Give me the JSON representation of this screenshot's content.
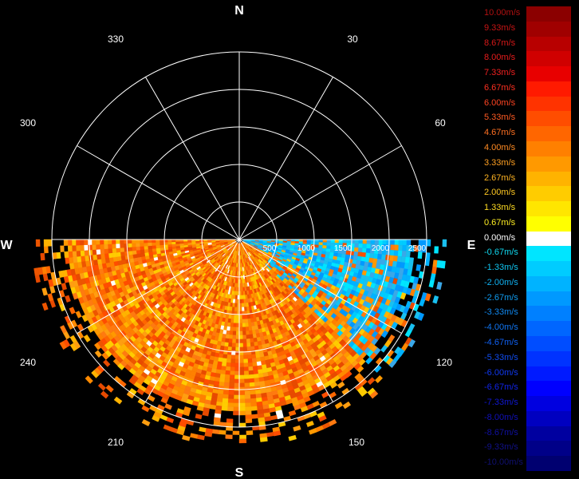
{
  "cardinals": {
    "north": "N",
    "south": "S",
    "east": "E",
    "west": "W"
  },
  "azimuth_labels": {
    "a330": "330",
    "a30": "30",
    "a300": "300",
    "a60": "60",
    "a240": "240",
    "a120": "120",
    "a210": "210",
    "a150": "150"
  },
  "range_labels": [
    "500",
    "1000",
    "1500",
    "2000",
    "2500"
  ],
  "legend": [
    {
      "label": "10.00m/s",
      "color": "#8b0000",
      "text": "#b01010"
    },
    {
      "label": "9.33m/s",
      "color": "#a00000",
      "text": "#c81414"
    },
    {
      "label": "8.67m/s",
      "color": "#b80000",
      "text": "#d81818"
    },
    {
      "label": "8.00m/s",
      "color": "#d00000",
      "text": "#e81c1c"
    },
    {
      "label": "7.33m/s",
      "color": "#e80000",
      "text": "#f02020"
    },
    {
      "label": "6.67m/s",
      "color": "#ff1a00",
      "text": "#ff3020"
    },
    {
      "label": "6.00m/s",
      "color": "#ff3300",
      "text": "#ff4422"
    },
    {
      "label": "5.33m/s",
      "color": "#ff4d00",
      "text": "#ff5a22"
    },
    {
      "label": "4.67m/s",
      "color": "#ff6600",
      "text": "#ff7022"
    },
    {
      "label": "4.00m/s",
      "color": "#ff8000",
      "text": "#ff8a22"
    },
    {
      "label": "3.33m/s",
      "color": "#ff9900",
      "text": "#ffa022"
    },
    {
      "label": "2.67m/s",
      "color": "#ffb300",
      "text": "#ffb422"
    },
    {
      "label": "2.00m/s",
      "color": "#ffcc00",
      "text": "#ffc822"
    },
    {
      "label": "1.33m/s",
      "color": "#ffe600",
      "text": "#ffdc22"
    },
    {
      "label": "0.67m/s",
      "color": "#ffff00",
      "text": "#ffee22"
    },
    {
      "label": "0.00m/s",
      "color": "#ffffff",
      "text": "#ffffff"
    },
    {
      "label": "-0.67m/s",
      "color": "#00e5ff",
      "text": "#10d8f0"
    },
    {
      "label": "-1.33m/s",
      "color": "#00ccff",
      "text": "#10c4f0"
    },
    {
      "label": "-2.00m/s",
      "color": "#00b3ff",
      "text": "#10b0f0"
    },
    {
      "label": "-2.67m/s",
      "color": "#0099ff",
      "text": "#109cf0"
    },
    {
      "label": "-3.33m/s",
      "color": "#0080ff",
      "text": "#1088f0"
    },
    {
      "label": "-4.00m/s",
      "color": "#0066ff",
      "text": "#1074f0"
    },
    {
      "label": "-4.67m/s",
      "color": "#004dff",
      "text": "#1060f0"
    },
    {
      "label": "-5.33m/s",
      "color": "#0033ff",
      "text": "#104cf0"
    },
    {
      "label": "-6.00m/s",
      "color": "#001aff",
      "text": "#1038f0"
    },
    {
      "label": "-6.67m/s",
      "color": "#0000ff",
      "text": "#1024e8"
    },
    {
      "label": "-7.33m/s",
      "color": "#0000e0",
      "text": "#1018d0"
    },
    {
      "label": "-8.00m/s",
      "color": "#0000c0",
      "text": "#1010b8"
    },
    {
      "label": "-8.67m/s",
      "color": "#0000a0",
      "text": "#1010a0"
    },
    {
      "label": "-9.33m/s",
      "color": "#000088",
      "text": "#101088"
    },
    {
      "label": "-10.00m/s",
      "color": "#000070",
      "text": "#101070"
    }
  ]
}
